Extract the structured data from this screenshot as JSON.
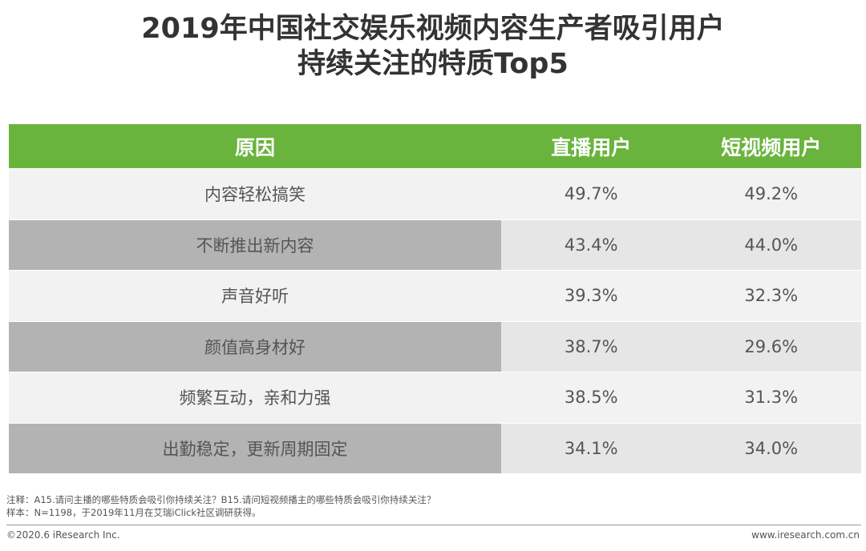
{
  "title_line1": "2019年中国社交娱乐视频内容生产者吸引用户",
  "title_line2": "持续关注的特质Top5",
  "chart_data": {
    "type": "table",
    "headers": [
      "原因",
      "直播用户",
      "短视频用户"
    ],
    "rows": [
      {
        "reason": "内容轻松搞笑",
        "live": "49.7%",
        "short": "49.2%"
      },
      {
        "reason": "不断推出新内容",
        "live": "43.4%",
        "short": "44.0%"
      },
      {
        "reason": "声音好听",
        "live": "39.3%",
        "short": "32.3%"
      },
      {
        "reason": "颜值高身材好",
        "live": "38.7%",
        "short": "29.6%"
      },
      {
        "reason": "频繁互动，亲和力强",
        "live": "38.5%",
        "short": "31.3%"
      },
      {
        "reason": "出勤稳定，更新周期固定",
        "live": "34.1%",
        "short": "34.0%"
      }
    ]
  },
  "notes": {
    "note": "注释：A15.请问主播的哪些特质会吸引你持续关注？B15.请问短视频播主的哪些特质会吸引你持续关注？",
    "sample": "样本：N=1198，于2019年11月在艾瑞iClick社区调研获得。"
  },
  "footer": {
    "copyright": "©2020.6 iResearch Inc.",
    "website": "www.iresearch.com.cn"
  }
}
